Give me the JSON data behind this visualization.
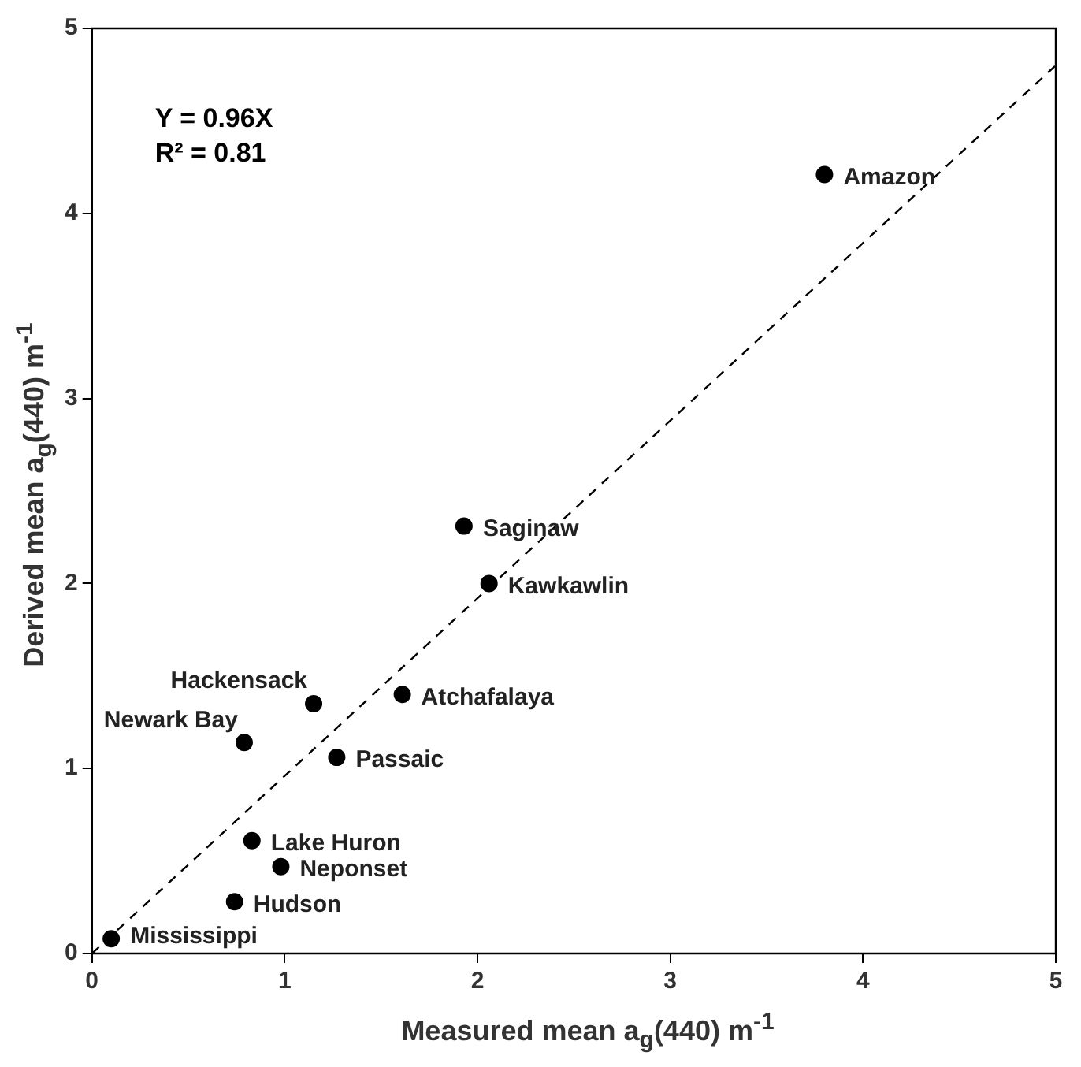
{
  "chart_data": {
    "type": "scatter",
    "xlabel": "Measured mean a$_{g}$(440) m$^{-1}$",
    "ylabel": "Derived mean a$_{g}$(440) m$^{-1}$",
    "xlim": [
      0,
      5
    ],
    "ylim": [
      0,
      5
    ],
    "xticks": [
      0,
      1,
      2,
      3,
      4,
      5
    ],
    "yticks": [
      0,
      1,
      2,
      3,
      4,
      5
    ],
    "grid": false,
    "legend": false,
    "marker": "circle",
    "annotations": [
      "Y = 0.96X",
      "R² = 0.81"
    ],
    "series": [
      {
        "type": "line",
        "x": [
          0,
          5
        ],
        "values": [
          0,
          4.8
        ],
        "color": "#000000",
        "line_style": "dashed",
        "marker": "none"
      },
      {
        "name": "Amazon",
        "x": [
          3.8
        ],
        "values": [
          4.21
        ],
        "color": "#000000"
      },
      {
        "name": "Saginaw",
        "x": [
          1.93
        ],
        "values": [
          2.31
        ],
        "color": "#000000"
      },
      {
        "name": "Kawkawlin",
        "x": [
          2.06
        ],
        "values": [
          2.0
        ],
        "color": "#000000"
      },
      {
        "name": "Atchafalaya",
        "x": [
          1.61
        ],
        "values": [
          1.4
        ],
        "color": "#000000"
      },
      {
        "name": "Hackensack",
        "x": [
          1.15
        ],
        "values": [
          1.35
        ],
        "color": "#000000"
      },
      {
        "name": "Newark Bay",
        "x": [
          0.79
        ],
        "values": [
          1.14
        ],
        "color": "#000000"
      },
      {
        "name": "Passaic",
        "x": [
          1.27
        ],
        "values": [
          1.06
        ],
        "color": "#000000"
      },
      {
        "name": "Lake Huron",
        "x": [
          0.83
        ],
        "values": [
          0.61
        ],
        "color": "#000000"
      },
      {
        "name": "Neponset",
        "x": [
          0.98
        ],
        "values": [
          0.47
        ],
        "color": "#000000"
      },
      {
        "name": "Hudson",
        "x": [
          0.74
        ],
        "values": [
          0.28
        ],
        "color": "#000000"
      },
      {
        "name": "Mississippi",
        "x": [
          0.1
        ],
        "values": [
          0.08
        ],
        "color": "#000000"
      }
    ]
  }
}
